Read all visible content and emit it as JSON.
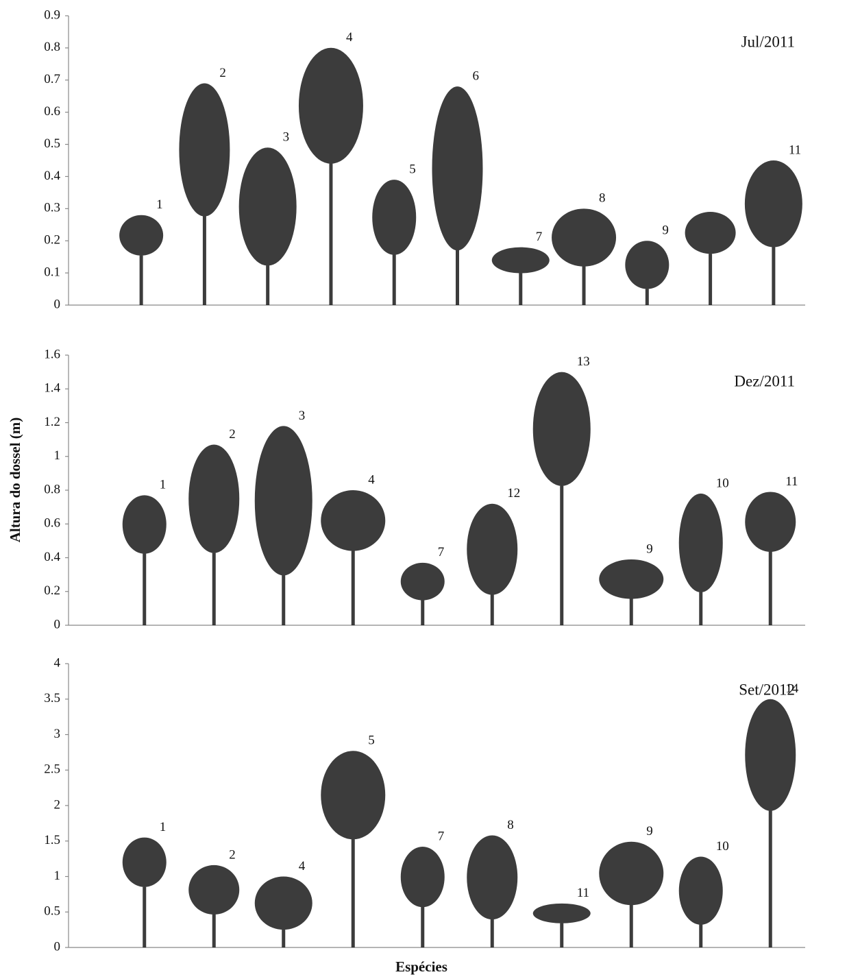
{
  "chart_data": [
    {
      "type": "bar",
      "title": "Jul/2011",
      "categories": [
        "1",
        "2",
        "3",
        "4",
        "5",
        "6",
        "7",
        "8",
        "9",
        null,
        "11"
      ],
      "values": [
        0.28,
        0.69,
        0.49,
        0.8,
        0.39,
        0.68,
        0.18,
        0.3,
        0.2,
        0.29,
        0.45
      ],
      "color": "#1a1a1a",
      "ylim": [
        0,
        0.9
      ],
      "yticks": [
        0,
        0.1,
        0.2,
        0.3,
        0.4,
        0.5,
        0.6,
        0.7,
        0.8,
        0.9
      ]
    },
    {
      "type": "bar",
      "title": "Dez/2011",
      "ylabel": "Altura do dossel (m)",
      "categories": [
        "1",
        "2",
        "3",
        "4",
        "7",
        "12",
        "13",
        "9",
        "10",
        "11"
      ],
      "values": [
        0.77,
        1.07,
        1.18,
        0.8,
        0.37,
        0.72,
        1.5,
        0.39,
        0.78,
        0.79
      ],
      "color": "#1a1a1a",
      "ylim": [
        0,
        1.6
      ],
      "yticks": [
        0,
        0.2,
        0.4,
        0.6,
        0.8,
        1,
        1.2,
        1.4,
        1.6
      ]
    },
    {
      "type": "bar",
      "title": "Set/2012",
      "xlabel": "Espécies",
      "categories": [
        "1",
        "2",
        "4",
        "5",
        "7",
        "8",
        "11",
        "9",
        "10",
        "14"
      ],
      "values": [
        1.55,
        1.16,
        1.0,
        2.77,
        1.42,
        1.58,
        0.62,
        1.49,
        1.28,
        3.5
      ],
      "color": "#1a1a1a",
      "ylim": [
        0,
        4
      ],
      "yticks": [
        0,
        0.5,
        1,
        1.5,
        2,
        2.5,
        3,
        3.5,
        4
      ]
    }
  ]
}
